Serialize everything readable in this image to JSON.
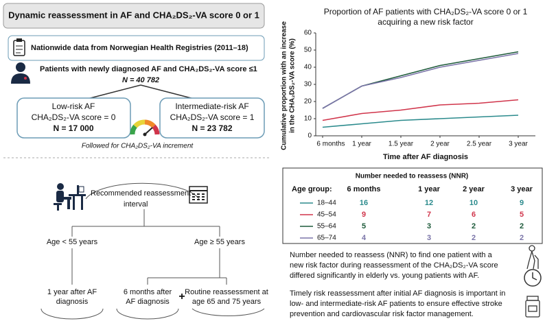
{
  "header": {
    "title": "Dynamic reassessment in AF and CHA₂DS₂-VA score 0 or 1"
  },
  "data_source": "Nationwide data from Norwegian Health Registries (2011–18)",
  "cohort": {
    "label": "Patients with newly diagnosed AF and CHA₂DS₂-VA score ≤1",
    "n": "N = 40 782"
  },
  "groups": [
    {
      "title": "Low-risk AF",
      "score": "CHA₂DS₂-VA score = 0",
      "n": "N =  17 000"
    },
    {
      "title": "Intermediate-risk AF",
      "score": "CHA₂DS₂-VA score = 1",
      "n": "N = 23 782"
    }
  ],
  "follow_up": "Followed for CHA₂DS₂-VA increment",
  "reassessment": {
    "title_lines": [
      "Recommended reassessment",
      "interval"
    ],
    "branches": [
      {
        "condition": "Age < 55 years",
        "outcomes": [
          [
            "1 year after AF",
            "diagnosis"
          ]
        ]
      },
      {
        "condition": "Age ≥ 55 years",
        "outcomes": [
          [
            "6 months after",
            "AF diagnosis"
          ],
          [
            "Routine reassessment at",
            "age 65 and 75 years"
          ]
        ]
      }
    ],
    "plus": "+"
  },
  "chart_data": {
    "type": "line",
    "title_lines": [
      "Proportion of AF patients with CHA₂DS₂-VA score 0 or 1",
      "acquiring a new risk factor"
    ],
    "y_label_lines": [
      "Cumulative proportion with an increase",
      "in the CHA₂DS₂-VA score (%)"
    ],
    "x_label": "Time after AF diagnosis",
    "categories": [
      "6 months",
      "1 year",
      "1.5 year",
      "2 year",
      "2.5 year",
      "3 year"
    ],
    "series": [
      {
        "name": "18–44",
        "color": "#2a8a8c",
        "values": [
          5,
          7,
          9,
          10,
          11,
          12
        ]
      },
      {
        "name": "45–54",
        "color": "#d0344a",
        "values": [
          9,
          13,
          15,
          18,
          19,
          21
        ]
      },
      {
        "name": "55–64",
        "color": "#1d5a3a",
        "values": [
          16,
          29,
          35,
          41,
          45,
          49
        ]
      },
      {
        "name": "65–74",
        "color": "#7a74a8",
        "values": [
          16,
          29,
          34,
          40,
          44,
          48
        ]
      }
    ],
    "ylim": [
      0,
      60
    ],
    "yticks": [
      0,
      10,
      20,
      30,
      40,
      50,
      60
    ],
    "grid": false
  },
  "nnr_table": {
    "title": "Number needed to reassess (NNR)",
    "group_header": "Age group:",
    "rows": [
      [
        16,
        12,
        10,
        9
      ],
      [
        9,
        7,
        6,
        5
      ],
      [
        5,
        3,
        2,
        2
      ],
      [
        4,
        3,
        2,
        2
      ]
    ]
  },
  "notes": {
    "nnr": [
      "Number needed to reassess (NNR) to find one patient with a",
      "new risk factor during reassessment of the CHA₂DS₂-VA score",
      "differed significantly in elderly vs. young patients with AF."
    ],
    "timely": [
      "Timely risk reassessment after initial AF diagnosis is important in",
      "low- and intermediate-risk AF patients to ensure effective stroke",
      "prevention and cardiovascular risk factor management."
    ]
  }
}
